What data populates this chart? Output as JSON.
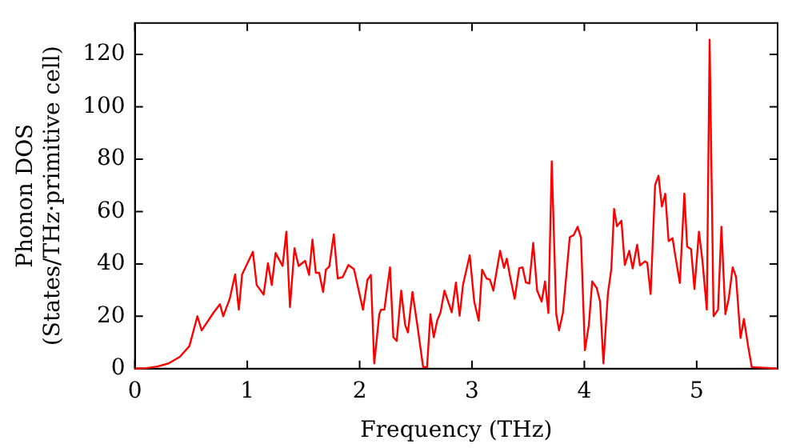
{
  "chart_data": {
    "type": "line",
    "xlabel": "Frequency (THz)",
    "ylabel": "Phonon DOS\n(States/THz·primitive cell)",
    "xlim": [
      0,
      5.72
    ],
    "ylim": [
      0,
      132
    ],
    "xticks": [
      0,
      1,
      2,
      3,
      4,
      5
    ],
    "yticks": [
      0,
      20,
      40,
      60,
      80,
      100,
      120
    ],
    "grid": false,
    "legend": false,
    "marker": "none",
    "line_style": "solid",
    "series": [
      {
        "color": "#ff0000",
        "x": [
          0,
          0.1,
          0.2,
          0.3,
          0.4,
          0.485,
          0.556,
          0.594,
          0.7,
          0.757,
          0.786,
          0.844,
          0.892,
          0.925,
          0.954,
          1.05,
          1.084,
          1.146,
          1.184,
          1.218,
          1.252,
          1.314,
          1.348,
          1.38,
          1.42,
          1.457,
          1.515,
          1.55,
          1.58,
          1.61,
          1.64,
          1.675,
          1.7,
          1.73,
          1.77,
          1.805,
          1.85,
          1.9,
          1.95,
          2.03,
          2.07,
          2.1,
          2.13,
          2.175,
          2.19,
          2.22,
          2.27,
          2.3,
          2.33,
          2.37,
          2.405,
          2.43,
          2.47,
          2.515,
          2.565,
          2.6,
          2.63,
          2.66,
          2.69,
          2.72,
          2.755,
          2.82,
          2.857,
          2.89,
          2.92,
          2.98,
          3.02,
          3.06,
          3.09,
          3.13,
          3.16,
          3.19,
          3.25,
          3.285,
          3.31,
          3.34,
          3.38,
          3.42,
          3.45,
          3.48,
          3.51,
          3.545,
          3.58,
          3.62,
          3.65,
          3.68,
          3.71,
          3.75,
          3.775,
          3.81,
          3.87,
          3.905,
          3.94,
          3.97,
          4.005,
          4.04,
          4.07,
          4.11,
          4.14,
          4.17,
          4.21,
          4.24,
          4.265,
          4.29,
          4.33,
          4.36,
          4.4,
          4.43,
          4.47,
          4.495,
          4.54,
          4.56,
          4.59,
          4.63,
          4.66,
          4.69,
          4.72,
          4.75,
          4.785,
          4.81,
          4.85,
          4.89,
          4.915,
          4.95,
          4.98,
          5.02,
          5.05,
          5.09,
          5.115,
          5.15,
          5.19,
          5.22,
          5.255,
          5.285,
          5.32,
          5.35,
          5.39,
          5.42,
          5.46,
          5.49,
          5.72
        ],
        "values": [
          0,
          0.2,
          0.8,
          2,
          4.5,
          8.6,
          20,
          14.6,
          21.4,
          24.6,
          20,
          26.7,
          36,
          22.5,
          36,
          44.6,
          31.9,
          28.3,
          40.3,
          31.9,
          44.2,
          39.2,
          52.3,
          23.5,
          46,
          39.2,
          41.2,
          35.8,
          49.3,
          36.6,
          36.6,
          29.3,
          37.8,
          39,
          51.3,
          34.4,
          35,
          39.6,
          38,
          22.5,
          34,
          35.8,
          2,
          20.8,
          22.5,
          22.5,
          38.7,
          12,
          10.6,
          29.8,
          16.7,
          13.8,
          29.3,
          16.2,
          0.6,
          0.6,
          20.8,
          12,
          18.3,
          21.5,
          29.8,
          21.5,
          32.9,
          20.2,
          32,
          43.3,
          25.6,
          18.3,
          37.8,
          34.4,
          34,
          29.8,
          45,
          38.5,
          42,
          35,
          26.7,
          38.3,
          38.7,
          32.9,
          32.5,
          48,
          29.8,
          25.6,
          33.3,
          21.2,
          79.2,
          20.8,
          14.6,
          21.5,
          50.2,
          51,
          54.2,
          50,
          7,
          16.7,
          33.3,
          30.8,
          25.6,
          2,
          28.8,
          38,
          61,
          54.4,
          56.5,
          39.6,
          45,
          38.3,
          47.3,
          39.4,
          41,
          40.4,
          28.5,
          70.2,
          73.7,
          61.9,
          66.8,
          48.7,
          49.8,
          43,
          32.7,
          66.9,
          46.6,
          45.6,
          30.4,
          52.3,
          41.7,
          22.5,
          125.6,
          20,
          22.5,
          54.2,
          20.8,
          26.7,
          38.7,
          35,
          11.7,
          19,
          8,
          0.6,
          0
        ]
      }
    ]
  }
}
